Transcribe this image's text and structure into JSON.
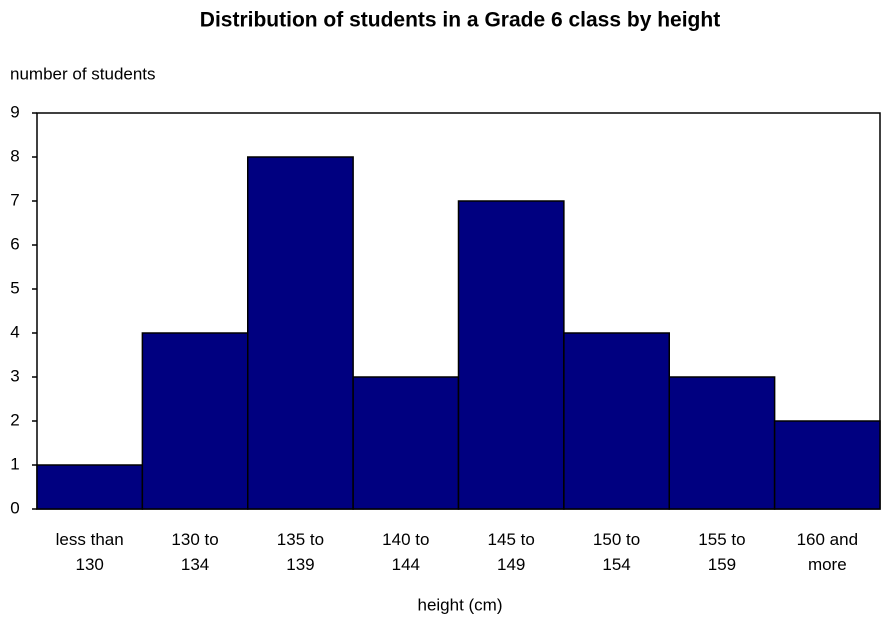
{
  "chart_data": {
    "type": "bar",
    "title": "Distribution of students in a Grade 6 class by height",
    "y_label": "number of students",
    "x_label": "height (cm)",
    "categories": [
      "less than 130",
      "130 to 134",
      "135 to 139",
      "140 to 144",
      "145 to 149",
      "150 to 154",
      "155 to 159",
      "160 and more"
    ],
    "values": [
      1,
      4,
      8,
      3,
      7,
      4,
      3,
      2
    ],
    "color": "#000080",
    "ylim": [
      0,
      9
    ],
    "yticks": [
      0,
      1,
      2,
      3,
      4,
      5,
      6,
      7,
      8,
      9
    ],
    "grid": false
  }
}
